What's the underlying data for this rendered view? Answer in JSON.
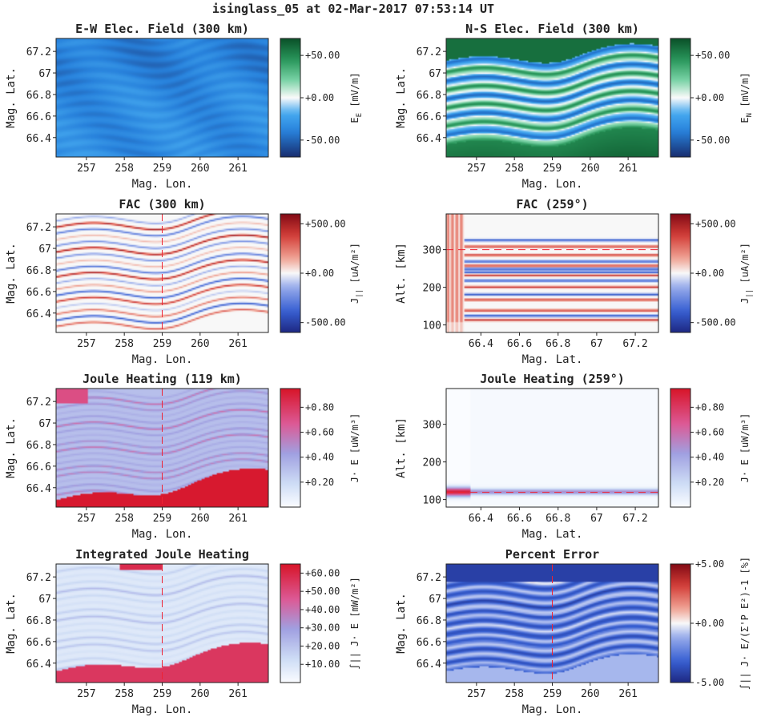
{
  "figure_title": "isinglass_05 at 02-Mar-2017 07:53:14 UT",
  "chart_data": [
    {
      "type": "heatmap",
      "title": "E-W Elec. Field (300 km)",
      "xlabel": "Mag. Lon.",
      "ylabel": "Mag. Lat.",
      "xlim": [
        256.2,
        261.8
      ],
      "ylim": [
        66.22,
        67.32
      ],
      "xticks": [
        257,
        258,
        259,
        260,
        261
      ],
      "xticklabels": [
        "257",
        "258",
        "259",
        "260",
        "261"
      ],
      "yticks": [
        66.4,
        66.6,
        66.8,
        67,
        67.2
      ],
      "yticklabels": [
        "66.4",
        "66.6",
        "66.8",
        "67",
        "67.2"
      ],
      "colorbar": {
        "label_main": "E",
        "label_sub": "E",
        "label_unit": "[mV/m]",
        "range": [
          -70,
          70
        ],
        "ticks": [
          -50,
          0,
          50
        ],
        "ticklabels": [
          "-50.00",
          "+0.00",
          "+50.00"
        ],
        "colormap": "blue-white-green"
      },
      "field": "ew",
      "marker_lon": null
    },
    {
      "type": "heatmap",
      "title": "N-S Elec. Field (300 km)",
      "xlabel": "Mag. Lon.",
      "ylabel": "Mag. Lat.",
      "xlim": [
        256.2,
        261.8
      ],
      "ylim": [
        66.22,
        67.32
      ],
      "xticks": [
        257,
        258,
        259,
        260,
        261
      ],
      "xticklabels": [
        "257",
        "258",
        "259",
        "260",
        "261"
      ],
      "yticks": [
        66.4,
        66.6,
        66.8,
        67,
        67.2
      ],
      "yticklabels": [
        "66.4",
        "66.6",
        "66.8",
        "67",
        "67.2"
      ],
      "colorbar": {
        "label_main": "E",
        "label_sub": "N",
        "label_unit": "[mV/m]",
        "range": [
          -70,
          70
        ],
        "ticks": [
          -50,
          0,
          50
        ],
        "ticklabels": [
          "-50.00",
          "+0.00",
          "+50.00"
        ],
        "colormap": "blue-white-green"
      },
      "field": "ns",
      "marker_lon": null
    },
    {
      "type": "heatmap",
      "title": "FAC (300 km)",
      "xlabel": "Mag. Lon.",
      "ylabel": "Mag. Lat.",
      "xlim": [
        256.2,
        261.8
      ],
      "ylim": [
        66.22,
        67.32
      ],
      "xticks": [
        257,
        258,
        259,
        260,
        261
      ],
      "xticklabels": [
        "257",
        "258",
        "259",
        "260",
        "261"
      ],
      "yticks": [
        66.4,
        66.6,
        66.8,
        67,
        67.2
      ],
      "yticklabels": [
        "66.4",
        "66.6",
        "66.8",
        "67",
        "67.2"
      ],
      "colorbar": {
        "label_main": "J",
        "label_sub": "||",
        "label_unit": "[uA/m²]",
        "range": [
          -600,
          600
        ],
        "ticks": [
          -500,
          0,
          500
        ],
        "ticklabels": [
          "-500.00",
          "+0.00",
          "+500.00"
        ],
        "colormap": "blue-white-red"
      },
      "field": "fac",
      "marker_lon": 259
    },
    {
      "type": "heatmap",
      "title": "FAC (259°)",
      "xlabel": "Mag. Lat.",
      "ylabel": "Alt. [km]",
      "xlim": [
        66.22,
        67.32
      ],
      "ylim": [
        80,
        395
      ],
      "xticks": [
        66.4,
        66.6,
        66.8,
        67,
        67.2
      ],
      "xticklabels": [
        "66.4",
        "66.6",
        "66.8",
        "67",
        "67.2"
      ],
      "yticks": [
        100,
        200,
        300
      ],
      "yticklabels": [
        "100",
        "200",
        "300"
      ],
      "colorbar": {
        "label_main": "J",
        "label_sub": "||",
        "label_unit": "[uA/m²]",
        "range": [
          -600,
          600
        ],
        "ticks": [
          -500,
          0,
          500
        ],
        "ticklabels": [
          "-500.00",
          "+0.00",
          "+500.00"
        ],
        "colormap": "blue-white-red"
      },
      "field": "fac_alt",
      "marker_alt": 300
    },
    {
      "type": "heatmap",
      "title": "Joule Heating (119 km)",
      "xlabel": "Mag. Lon.",
      "ylabel": "Mag. Lat.",
      "xlim": [
        256.2,
        261.8
      ],
      "ylim": [
        66.22,
        67.32
      ],
      "xticks": [
        257,
        258,
        259,
        260,
        261
      ],
      "xticklabels": [
        "257",
        "258",
        "259",
        "260",
        "261"
      ],
      "yticks": [
        66.4,
        66.6,
        66.8,
        67,
        67.2
      ],
      "yticklabels": [
        "66.4",
        "66.6",
        "66.8",
        "67",
        "67.2"
      ],
      "colorbar": {
        "label_main": "J· E",
        "label_sub": "",
        "label_unit": "[uW/m³]",
        "range": [
          0,
          0.95
        ],
        "ticks": [
          0.2,
          0.4,
          0.6,
          0.8
        ],
        "ticklabels": [
          "+0.20",
          "+0.40",
          "+0.60",
          "+0.80"
        ],
        "colormap": "white-blue-red"
      },
      "field": "joule",
      "marker_lon": 259
    },
    {
      "type": "heatmap",
      "title": "Joule Heating (259°)",
      "xlabel": "Mag. Lat.",
      "ylabel": "Alt. [km]",
      "xlim": [
        66.22,
        67.32
      ],
      "ylim": [
        80,
        395
      ],
      "xticks": [
        66.4,
        66.6,
        66.8,
        67,
        67.2
      ],
      "xticklabels": [
        "66.4",
        "66.6",
        "66.8",
        "67",
        "67.2"
      ],
      "yticks": [
        100,
        200,
        300
      ],
      "yticklabels": [
        "100",
        "200",
        "300"
      ],
      "colorbar": {
        "label_main": "J· E",
        "label_sub": "",
        "label_unit": "[uW/m³]",
        "range": [
          0,
          0.95
        ],
        "ticks": [
          0.2,
          0.4,
          0.6,
          0.8
        ],
        "ticklabels": [
          "+0.20",
          "+0.40",
          "+0.60",
          "+0.80"
        ],
        "colormap": "white-blue-red"
      },
      "field": "joule_alt",
      "marker_alt": 119
    },
    {
      "type": "heatmap",
      "title": "Integrated Joule Heating",
      "xlabel": "Mag. Lon.",
      "ylabel": "Mag. Lat.",
      "xlim": [
        256.2,
        261.8
      ],
      "ylim": [
        66.22,
        67.32
      ],
      "xticks": [
        257,
        258,
        259,
        260,
        261
      ],
      "xticklabels": [
        "257",
        "258",
        "259",
        "260",
        "261"
      ],
      "yticks": [
        66.4,
        66.6,
        66.8,
        67,
        67.2
      ],
      "yticklabels": [
        "66.4",
        "66.6",
        "66.8",
        "67",
        "67.2"
      ],
      "colorbar": {
        "label_main": "∫|| J· E",
        "label_sub": "",
        "label_unit": "[mW/m²]",
        "range": [
          0,
          65
        ],
        "ticks": [
          10,
          20,
          30,
          40,
          50,
          60
        ],
        "ticklabels": [
          "+10.00",
          "+20.00",
          "+30.00",
          "+40.00",
          "+50.00",
          "+60.00"
        ],
        "colormap": "white-blue-red"
      },
      "field": "intjoule",
      "marker_lon": 259
    },
    {
      "type": "heatmap",
      "title": "Percent Error",
      "xlabel": "Mag. Lon.",
      "ylabel": "Mag. Lat.",
      "xlim": [
        256.2,
        261.8
      ],
      "ylim": [
        66.22,
        67.32
      ],
      "xticks": [
        257,
        258,
        259,
        260,
        261
      ],
      "xticklabels": [
        "257",
        "258",
        "259",
        "260",
        "261"
      ],
      "yticks": [
        66.4,
        66.6,
        66.8,
        67,
        67.2
      ],
      "yticklabels": [
        "66.4",
        "66.6",
        "66.8",
        "67",
        "67.2"
      ],
      "colorbar": {
        "label_main": "∫|| J· E/(Σ'P E²)-1",
        "label_sub": "",
        "label_unit": "[%]",
        "range": [
          -5,
          5
        ],
        "ticks": [
          -5,
          0,
          5
        ],
        "ticklabels": [
          "-5.00",
          "+0.00",
          "+5.00"
        ],
        "colormap": "blue-white-red"
      },
      "field": "perr",
      "marker_lon": 259
    }
  ]
}
